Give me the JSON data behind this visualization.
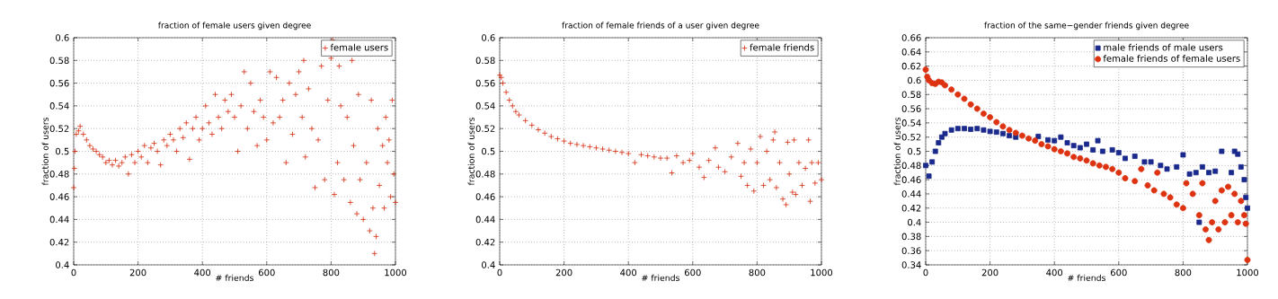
{
  "chart_data": [
    {
      "type": "scatter",
      "title": "fraction of female users given degree",
      "xlabel": "# friends",
      "ylabel": "fraction of users",
      "xlim": [
        0,
        1000
      ],
      "ylim": [
        0.4,
        0.6
      ],
      "xticks": [
        0,
        200,
        400,
        600,
        800,
        1000
      ],
      "yticks": [
        0.4,
        0.42,
        0.44,
        0.46,
        0.48,
        0.5,
        0.52,
        0.54,
        0.56,
        0.58,
        0.6
      ],
      "grid": true,
      "legend": "top right",
      "marker": "cross",
      "series": [
        {
          "name": "female users",
          "color": "#d42a0c",
          "x": [
            0,
            2,
            4,
            8,
            15,
            20,
            30,
            40,
            50,
            60,
            70,
            80,
            90,
            100,
            110,
            120,
            130,
            140,
            150,
            160,
            170,
            180,
            190,
            200,
            210,
            220,
            230,
            240,
            250,
            260,
            270,
            280,
            290,
            300,
            310,
            320,
            330,
            340,
            350,
            360,
            370,
            380,
            390,
            400,
            410,
            420,
            430,
            440,
            450,
            460,
            470,
            480,
            490,
            500,
            510,
            520,
            530,
            540,
            550,
            560,
            570,
            580,
            590,
            600,
            610,
            620,
            630,
            640,
            650,
            660,
            670,
            680,
            690,
            700,
            710,
            715,
            720,
            730,
            740,
            750,
            760,
            770,
            780,
            790,
            800,
            805,
            810,
            820,
            825,
            830,
            840,
            850,
            860,
            865,
            870,
            880,
            885,
            890,
            900,
            910,
            920,
            925,
            930,
            935,
            940,
            945,
            950,
            960,
            965,
            970,
            975,
            980,
            985,
            990,
            995,
            1000
          ],
          "values": [
            0.468,
            0.485,
            0.5,
            0.515,
            0.518,
            0.522,
            0.515,
            0.51,
            0.505,
            0.502,
            0.5,
            0.497,
            0.495,
            0.49,
            0.492,
            0.488,
            0.492,
            0.487,
            0.49,
            0.495,
            0.48,
            0.497,
            0.49,
            0.5,
            0.495,
            0.505,
            0.49,
            0.503,
            0.507,
            0.5,
            0.488,
            0.51,
            0.505,
            0.515,
            0.51,
            0.5,
            0.52,
            0.512,
            0.525,
            0.493,
            0.52,
            0.53,
            0.51,
            0.52,
            0.54,
            0.525,
            0.515,
            0.55,
            0.53,
            0.52,
            0.545,
            0.535,
            0.55,
            0.53,
            0.5,
            0.54,
            0.57,
            0.52,
            0.56,
            0.535,
            0.505,
            0.545,
            0.53,
            0.51,
            0.57,
            0.525,
            0.565,
            0.53,
            0.545,
            0.49,
            0.56,
            0.515,
            0.55,
            0.57,
            0.53,
            0.58,
            0.495,
            0.555,
            0.52,
            0.468,
            0.51,
            0.575,
            0.475,
            0.545,
            0.582,
            0.598,
            0.462,
            0.49,
            0.575,
            0.54,
            0.475,
            0.53,
            0.455,
            0.58,
            0.505,
            0.445,
            0.55,
            0.475,
            0.44,
            0.49,
            0.43,
            0.545,
            0.45,
            0.41,
            0.425,
            0.52,
            0.47,
            0.505,
            0.45,
            0.53,
            0.49,
            0.51,
            0.46,
            0.545,
            0.48,
            0.455
          ]
        }
      ]
    },
    {
      "type": "scatter",
      "title": "fraction of female friends of a user given degree",
      "xlabel": "# friends",
      "ylabel": "fraction of users",
      "xlim": [
        0,
        1000
      ],
      "ylim": [
        0.4,
        0.6
      ],
      "xticks": [
        0,
        200,
        400,
        600,
        800,
        1000
      ],
      "yticks": [
        0.4,
        0.42,
        0.44,
        0.46,
        0.48,
        0.5,
        0.52,
        0.54,
        0.56,
        0.58,
        0.6
      ],
      "grid": true,
      "legend": "top right",
      "marker": "cross",
      "series": [
        {
          "name": "female friends",
          "color": "#d42a0c",
          "x": [
            0,
            5,
            10,
            20,
            30,
            40,
            50,
            60,
            80,
            100,
            120,
            140,
            160,
            180,
            200,
            220,
            240,
            260,
            280,
            300,
            320,
            340,
            360,
            380,
            400,
            420,
            440,
            460,
            480,
            500,
            520,
            535,
            550,
            570,
            590,
            600,
            620,
            635,
            650,
            670,
            680,
            700,
            720,
            740,
            750,
            760,
            770,
            780,
            790,
            800,
            810,
            820,
            830,
            840,
            850,
            855,
            860,
            870,
            880,
            890,
            895,
            900,
            910,
            915,
            920,
            930,
            940,
            950,
            960,
            965,
            970,
            980,
            990,
            1000
          ],
          "values": [
            0.567,
            0.565,
            0.56,
            0.552,
            0.545,
            0.54,
            0.535,
            0.532,
            0.527,
            0.523,
            0.519,
            0.516,
            0.513,
            0.511,
            0.509,
            0.507,
            0.506,
            0.505,
            0.504,
            0.503,
            0.502,
            0.501,
            0.5,
            0.499,
            0.498,
            0.49,
            0.497,
            0.496,
            0.495,
            0.494,
            0.494,
            0.481,
            0.496,
            0.49,
            0.492,
            0.498,
            0.486,
            0.477,
            0.492,
            0.503,
            0.486,
            0.482,
            0.495,
            0.507,
            0.478,
            0.49,
            0.47,
            0.502,
            0.465,
            0.49,
            0.513,
            0.47,
            0.5,
            0.475,
            0.51,
            0.517,
            0.468,
            0.49,
            0.458,
            0.453,
            0.508,
            0.48,
            0.464,
            0.51,
            0.462,
            0.49,
            0.47,
            0.485,
            0.51,
            0.456,
            0.49,
            0.472,
            0.49,
            0.475
          ]
        }
      ]
    },
    {
      "type": "scatter",
      "title": "fraction of the same−gender friends given degree",
      "xlabel": "# friends",
      "ylabel": "fraction of users",
      "xlim": [
        0,
        1000
      ],
      "ylim": [
        0.34,
        0.66
      ],
      "xticks": [
        0,
        200,
        400,
        600,
        800,
        1000
      ],
      "yticks": [
        0.34,
        0.36,
        0.38,
        0.4,
        0.42,
        0.44,
        0.46,
        0.48,
        0.5,
        0.52,
        0.54,
        0.56,
        0.58,
        0.6,
        0.62,
        0.64,
        0.66
      ],
      "grid": true,
      "legend": "top right",
      "series": [
        {
          "name": "male friends of male users",
          "color": "#1a2a8c",
          "marker": "square",
          "x": [
            0,
            10,
            20,
            30,
            40,
            50,
            60,
            80,
            100,
            120,
            140,
            160,
            180,
            200,
            220,
            240,
            260,
            280,
            350,
            380,
            400,
            420,
            440,
            460,
            480,
            500,
            520,
            535,
            550,
            580,
            600,
            620,
            650,
            680,
            700,
            730,
            750,
            780,
            800,
            820,
            840,
            850,
            860,
            880,
            900,
            920,
            950,
            960,
            970,
            980,
            990,
            995,
            1000
          ],
          "values": [
            0.48,
            0.465,
            0.485,
            0.5,
            0.512,
            0.52,
            0.525,
            0.53,
            0.532,
            0.532,
            0.531,
            0.532,
            0.53,
            0.528,
            0.527,
            0.525,
            0.522,
            0.52,
            0.521,
            0.516,
            0.515,
            0.52,
            0.512,
            0.508,
            0.505,
            0.51,
            0.502,
            0.515,
            0.5,
            0.502,
            0.498,
            0.49,
            0.493,
            0.485,
            0.485,
            0.48,
            0.475,
            0.478,
            0.495,
            0.468,
            0.47,
            0.4,
            0.478,
            0.47,
            0.472,
            0.5,
            0.47,
            0.5,
            0.496,
            0.478,
            0.46,
            0.435,
            0.42
          ]
        },
        {
          "name": "female friends of female users",
          "color": "#dd3311",
          "marker": "circle",
          "x": [
            0,
            5,
            10,
            20,
            30,
            40,
            50,
            60,
            80,
            100,
            120,
            140,
            160,
            180,
            200,
            220,
            240,
            260,
            280,
            300,
            320,
            340,
            360,
            380,
            400,
            420,
            440,
            460,
            480,
            500,
            520,
            540,
            560,
            580,
            600,
            620,
            650,
            670,
            690,
            710,
            720,
            740,
            760,
            780,
            800,
            810,
            830,
            850,
            860,
            870,
            880,
            890,
            900,
            910,
            920,
            930,
            940,
            950,
            960,
            970,
            980,
            990,
            995,
            1000
          ],
          "values": [
            0.615,
            0.605,
            0.6,
            0.596,
            0.595,
            0.598,
            0.597,
            0.593,
            0.587,
            0.58,
            0.574,
            0.566,
            0.56,
            0.553,
            0.548,
            0.541,
            0.535,
            0.53,
            0.526,
            0.522,
            0.518,
            0.515,
            0.51,
            0.507,
            0.503,
            0.5,
            0.497,
            0.492,
            0.49,
            0.487,
            0.483,
            0.48,
            0.478,
            0.475,
            0.47,
            0.462,
            0.458,
            0.475,
            0.452,
            0.445,
            0.47,
            0.44,
            0.435,
            0.425,
            0.42,
            0.455,
            0.44,
            0.41,
            0.455,
            0.39,
            0.375,
            0.4,
            0.43,
            0.39,
            0.445,
            0.4,
            0.45,
            0.41,
            0.44,
            0.4,
            0.43,
            0.41,
            0.398,
            0.347
          ]
        }
      ]
    }
  ]
}
